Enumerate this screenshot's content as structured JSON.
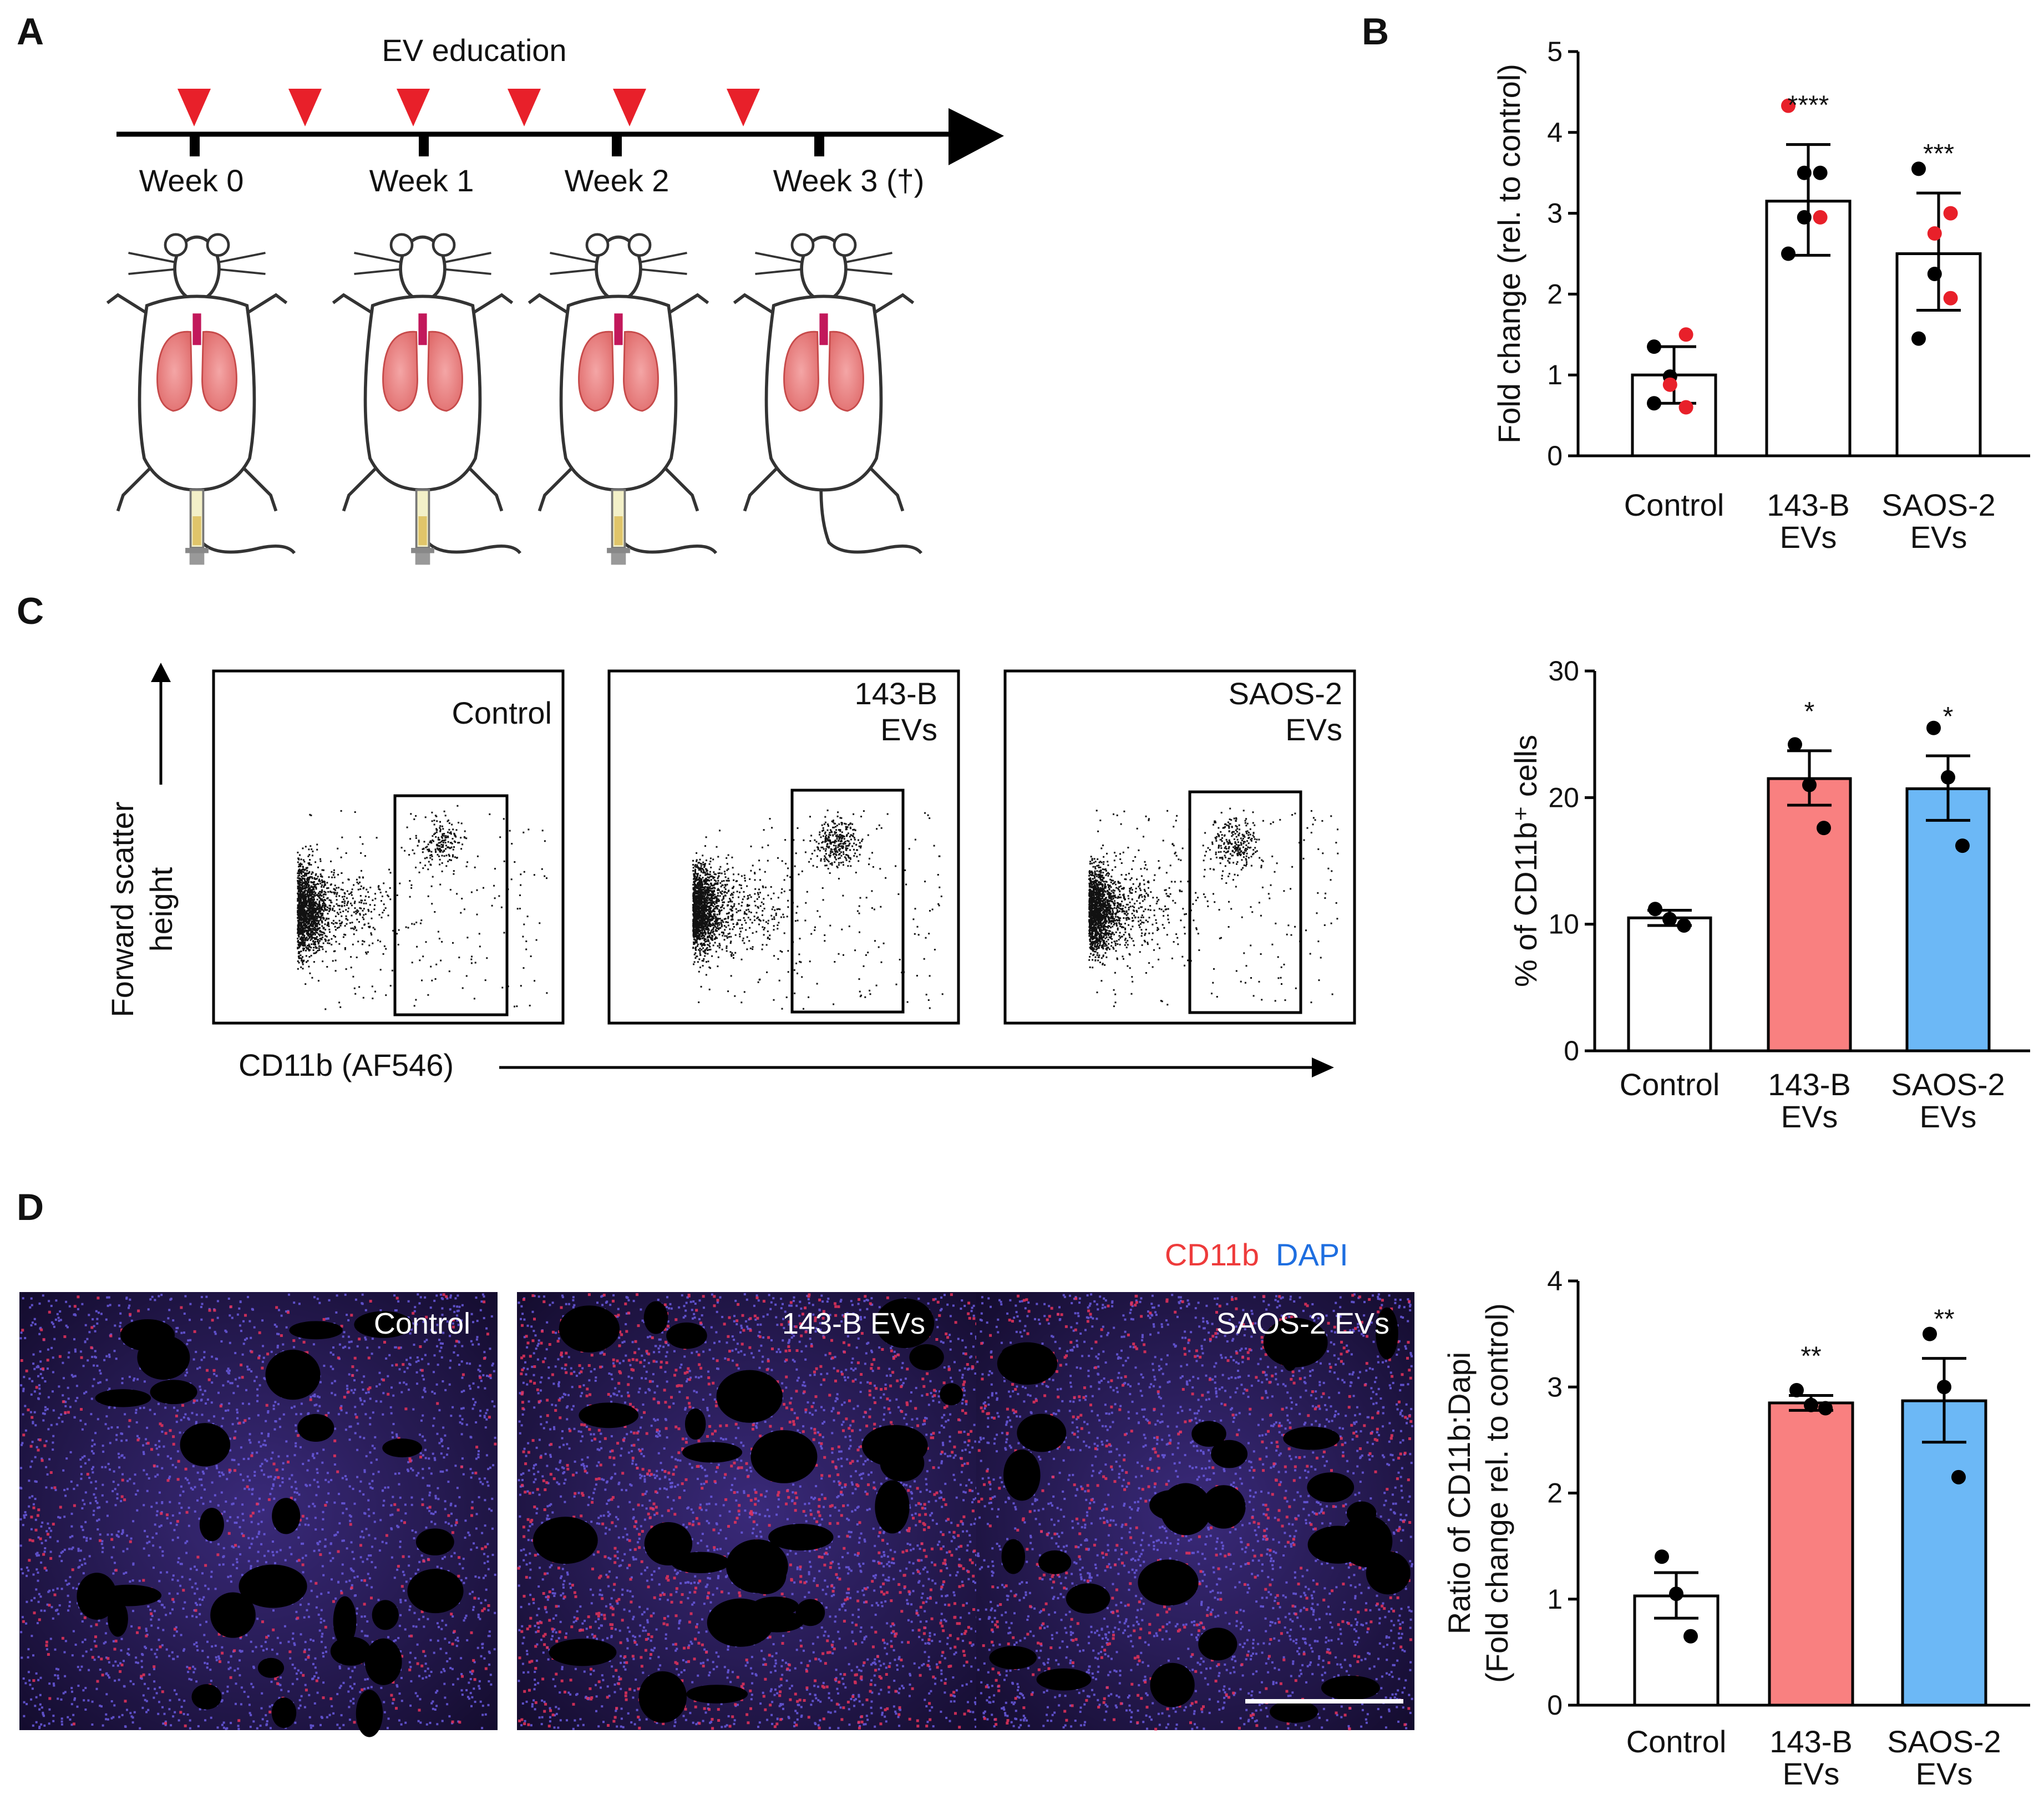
{
  "panels": {
    "a": {
      "letter": "A",
      "title": "EV education",
      "weeks": [
        "Week 0",
        "Week 1",
        "Week 2",
        "Week 3 (†)"
      ],
      "injection_count": 6
    },
    "b": {
      "letter": "B"
    },
    "c": {
      "letter": "C",
      "y_label_line1": "Forward scatter",
      "y_label_line2": "height",
      "x_label": "CD11b (AF546)",
      "plots": [
        {
          "line1": "Control",
          "line2": ""
        },
        {
          "line1": "143-B",
          "line2": "EVs"
        },
        {
          "line1": "SAOS-2",
          "line2": "EVs"
        }
      ]
    },
    "d": {
      "letter": "D",
      "legend_cd11b": "CD11b",
      "legend_dapi": "DAPI",
      "images": [
        "Control",
        "143-B EVs",
        "SAOS-2 EVs"
      ]
    }
  },
  "colors": {
    "red_marker": "#e8202a",
    "bar_pink": "#f98080",
    "bar_blue": "#6cb8f6",
    "cd11b_text": "#ee3b3b",
    "dapi_text": "#1e6ee0"
  },
  "chart_data": [
    {
      "id": "b",
      "type": "bar",
      "ylabel": "Fold change (rel. to control)",
      "ylim": [
        0,
        5
      ],
      "yticks": [
        "0",
        "1",
        "2",
        "3",
        "4",
        "5"
      ],
      "categories": [
        {
          "line1": "Control",
          "line2": ""
        },
        {
          "line1": "143-B",
          "line2": "EVs"
        },
        {
          "line1": "SAOS-2",
          "line2": "EVs"
        }
      ],
      "series": [
        {
          "name": "mean",
          "values": [
            1.0,
            3.15,
            2.5
          ]
        },
        {
          "name": "sd_upper",
          "values": [
            1.35,
            3.85,
            3.25
          ]
        },
        {
          "name": "sd_lower",
          "values": [
            0.65,
            2.48,
            1.8
          ]
        }
      ],
      "bar_colors": [
        "#ffffff",
        "#ffffff",
        "#ffffff"
      ],
      "significance": [
        "",
        "****",
        "***"
      ],
      "points": [
        [
          {
            "v": 1.35,
            "c": "black"
          },
          {
            "v": 1.5,
            "c": "red"
          },
          {
            "v": 0.98,
            "c": "black"
          },
          {
            "v": 0.88,
            "c": "red"
          },
          {
            "v": 0.6,
            "c": "red"
          },
          {
            "v": 0.65,
            "c": "black"
          }
        ],
        [
          {
            "v": 4.33,
            "c": "red"
          },
          {
            "v": 3.5,
            "c": "black"
          },
          {
            "v": 3.5,
            "c": "black"
          },
          {
            "v": 2.95,
            "c": "black"
          },
          {
            "v": 2.95,
            "c": "red"
          },
          {
            "v": 2.5,
            "c": "black"
          }
        ],
        [
          {
            "v": 3.55,
            "c": "black"
          },
          {
            "v": 3.0,
            "c": "red"
          },
          {
            "v": 2.75,
            "c": "red"
          },
          {
            "v": 2.25,
            "c": "black"
          },
          {
            "v": 1.95,
            "c": "red"
          },
          {
            "v": 1.45,
            "c": "black"
          }
        ]
      ]
    },
    {
      "id": "c",
      "type": "bar",
      "ylabel": "% of CD11b⁺ cells",
      "ylim": [
        0,
        30
      ],
      "yticks": [
        "0",
        "10",
        "20",
        "30"
      ],
      "categories": [
        {
          "line1": "Control",
          "line2": ""
        },
        {
          "line1": "143-B",
          "line2": "EVs"
        },
        {
          "line1": "SAOS-2",
          "line2": "EVs"
        }
      ],
      "series": [
        {
          "name": "mean",
          "values": [
            10.5,
            21.5,
            20.7
          ]
        },
        {
          "name": "sem_upper",
          "values": [
            11.1,
            23.7,
            23.3
          ]
        },
        {
          "name": "sem_lower",
          "values": [
            9.9,
            19.4,
            18.2
          ]
        }
      ],
      "bar_colors": [
        "#ffffff",
        "#f98080",
        "#6cb8f6"
      ],
      "significance": [
        "",
        "*",
        "*"
      ],
      "points": [
        [
          {
            "v": 11.2,
            "c": "black"
          },
          {
            "v": 10.4,
            "c": "black"
          },
          {
            "v": 9.9,
            "c": "black"
          }
        ],
        [
          {
            "v": 24.2,
            "c": "black"
          },
          {
            "v": 21.0,
            "c": "black"
          },
          {
            "v": 17.6,
            "c": "black"
          }
        ],
        [
          {
            "v": 25.5,
            "c": "black"
          },
          {
            "v": 21.6,
            "c": "black"
          },
          {
            "v": 16.2,
            "c": "black"
          }
        ]
      ]
    },
    {
      "id": "d",
      "type": "bar",
      "ylabel": "Ratio of CD11b:Dapi",
      "ylabel2": "(Fold change rel. to control)",
      "ylim": [
        0,
        4
      ],
      "yticks": [
        "0",
        "1",
        "2",
        "3",
        "4"
      ],
      "categories": [
        {
          "line1": "Control",
          "line2": ""
        },
        {
          "line1": "143-B",
          "line2": "EVs"
        },
        {
          "line1": "SAOS-2",
          "line2": "EVs"
        }
      ],
      "series": [
        {
          "name": "mean",
          "values": [
            1.03,
            2.85,
            2.87
          ]
        },
        {
          "name": "sem_upper",
          "values": [
            1.25,
            2.92,
            3.27
          ]
        },
        {
          "name": "sem_lower",
          "values": [
            0.82,
            2.78,
            2.48
          ]
        }
      ],
      "bar_colors": [
        "#ffffff",
        "#f98080",
        "#6cb8f6"
      ],
      "significance": [
        "",
        "**",
        "**"
      ],
      "points": [
        [
          {
            "v": 1.4,
            "c": "black"
          },
          {
            "v": 1.05,
            "c": "black"
          },
          {
            "v": 0.65,
            "c": "black"
          }
        ],
        [
          {
            "v": 2.97,
            "c": "black"
          },
          {
            "v": 2.83,
            "c": "black"
          },
          {
            "v": 2.8,
            "c": "black"
          }
        ],
        [
          {
            "v": 3.5,
            "c": "black"
          },
          {
            "v": 3.0,
            "c": "black"
          },
          {
            "v": 2.15,
            "c": "black"
          }
        ]
      ]
    }
  ]
}
